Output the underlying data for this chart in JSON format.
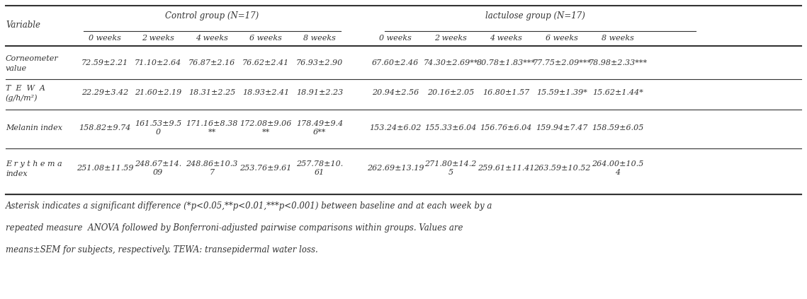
{
  "group1_header": "Control group (N=17)",
  "group2_header": "lactulose group (N=17)",
  "week_labels": [
    "0 weeks",
    "2 weeks",
    "4 weeks",
    "6 weeks",
    "8 weeks"
  ],
  "rows": [
    {
      "variable": [
        "Corneometer",
        "value"
      ],
      "ctrl": [
        "72.59±2.21",
        "71.10±2.64",
        "76.87±2.16",
        "76.62±2.41",
        "76.93±2.90"
      ],
      "lactl": [
        "67.60±2.46",
        "74.30±2.69**",
        "80.78±1.83***",
        "77.75±2.09***",
        "78.98±2.33***"
      ]
    },
    {
      "variable": [
        "T  E  W  A",
        "(g/h/m²)"
      ],
      "ctrl": [
        "22.29±3.42",
        "21.60±2.19",
        "18.31±2.25",
        "18.93±2.41",
        "18.91±2.23"
      ],
      "lactl": [
        "20.94±2.56",
        "20.16±2.05",
        "16.80±1.57",
        "15.59±1.39*",
        "15.62±1.44*"
      ]
    },
    {
      "variable": [
        "Melanin index",
        ""
      ],
      "ctrl": [
        "158.82±9.74",
        "161.53±9.5\n0",
        "171.16±8.38\n**",
        "172.08±9.06\n**",
        "178.49±9.4\n6**"
      ],
      "lactl": [
        "153.24±6.02",
        "155.33±6.04",
        "156.76±6.04",
        "159.94±7.47",
        "158.59±6.05"
      ]
    },
    {
      "variable": [
        "E r y t h e m a",
        "index"
      ],
      "ctrl": [
        "251.08±11.59",
        "248.67±14.\n09",
        "248.86±10.3\n7",
        "253.76±9.61",
        "257.78±10.\n61"
      ],
      "lactl": [
        "262.69±13.19",
        "271.80±14.2\n5",
        "259.61±11.41",
        "263.59±10.52",
        "264.00±10.5\n4"
      ]
    }
  ],
  "footnote_lines": [
    "Asterisk indicates a significant difference (*p<0.05,**p<0.01,***p<0.001) between baseline and at each week by a",
    "repeated measure  ANOVA followed by Bonferroni-adjusted pairwise comparisons within groups. Values are",
    "means±SEM for subjects, respectively. TEWA: transepidermal water loss."
  ],
  "bg_color": "#ffffff",
  "text_color": "#333333",
  "line_color": "#333333",
  "font_size": 8.0,
  "header_font_size": 8.5,
  "footnote_font_size": 8.5
}
